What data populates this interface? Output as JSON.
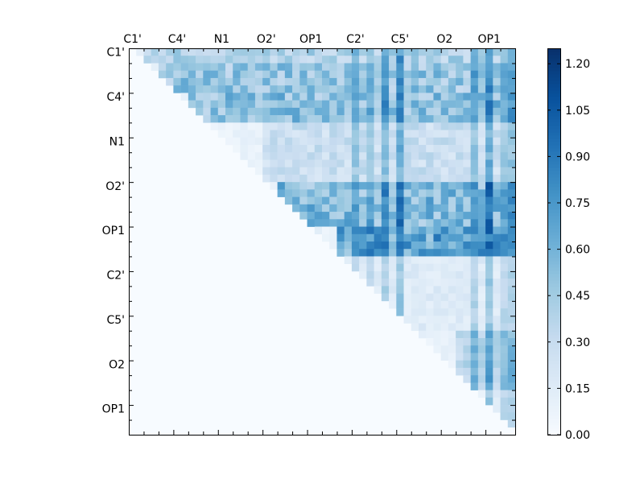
{
  "chart_data": {
    "type": "heatmap",
    "title": "",
    "xlabel": "",
    "ylabel": "",
    "n": 52,
    "colormap": "Blues",
    "colorbar": {
      "min": 0.0,
      "max": 1.25,
      "ticks": [
        "0.00",
        "0.15",
        "0.30",
        "0.45",
        "0.60",
        "0.75",
        "0.90",
        "1.05",
        "1.20"
      ]
    },
    "x_tick_labels": [
      "C1'",
      "C4'",
      "N1",
      "O2'",
      "OP1",
      "C2'",
      "C5'",
      "O2",
      "OP1"
    ],
    "y_tick_labels": [
      "C1'",
      "C4'",
      "N1",
      "O2'",
      "OP1",
      "C2'",
      "C5'",
      "O2",
      "OP1"
    ],
    "major_tick_positions": [
      0,
      6,
      12,
      18,
      24,
      30,
      36,
      42,
      48
    ],
    "special_columns": [
      {
        "col": 36,
        "value": 1.1
      },
      {
        "col": 34,
        "value": 0.95
      },
      {
        "col": 30,
        "value": 0.85
      },
      {
        "col": 32,
        "value": 0.8
      },
      {
        "col": 48,
        "value": 1.1
      },
      {
        "col": 46,
        "value": 0.9
      },
      {
        "col": 50,
        "value": 0.8
      },
      {
        "col": 51,
        "value": 0.9
      }
    ],
    "row_blocks": [
      {
        "rows": [
          0,
          1
        ],
        "cols": [
          2,
          51
        ],
        "level": 0.5
      },
      {
        "rows": [
          2,
          5
        ],
        "cols": [
          4,
          51
        ],
        "level": 0.6
      },
      {
        "rows": [
          6,
          9
        ],
        "cols": [
          8,
          51
        ],
        "level": 0.65
      },
      {
        "rows": [
          10,
          17
        ],
        "cols": [
          18,
          51
        ],
        "level": 0.35
      },
      {
        "rows": [
          18,
          23
        ],
        "cols": [
          20,
          51
        ],
        "level": 0.7
      },
      {
        "rows": [
          24,
          27
        ],
        "cols": [
          28,
          51
        ],
        "level": 0.85
      },
      {
        "rows": [
          28,
          37
        ],
        "cols": [
          30,
          51
        ],
        "level": 0.2
      },
      {
        "rows": [
          38,
          45
        ],
        "cols": [
          44,
          51
        ],
        "level": 0.45
      },
      {
        "rows": [
          46,
          51
        ],
        "cols": [
          48,
          51
        ],
        "level": 0.2
      }
    ]
  }
}
